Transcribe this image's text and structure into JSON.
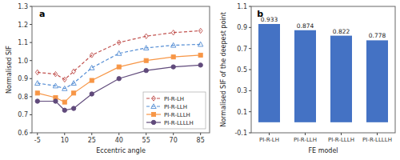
{
  "chart_data": [
    {
      "type": "line",
      "x": [
        -5,
        5,
        10,
        15,
        25,
        40,
        55,
        70,
        85
      ],
      "series": [
        {
          "name": "PI-R-LH",
          "color": "#c0504d",
          "line_style": "dashed",
          "marker": "diamond-open",
          "values": [
            0.935,
            0.925,
            0.895,
            0.94,
            1.03,
            1.1,
            1.135,
            1.155,
            1.165
          ]
        },
        {
          "name": "PI-R-LLH",
          "color": "#548dd4",
          "line_style": "dashed",
          "marker": "triangle-open",
          "values": [
            0.875,
            0.86,
            0.845,
            0.875,
            0.96,
            1.04,
            1.07,
            1.085,
            1.09
          ]
        },
        {
          "name": "PI-R-LLLH",
          "color": "#f79646",
          "line_style": "solid",
          "marker": "square",
          "values": [
            0.82,
            0.795,
            0.77,
            0.82,
            0.89,
            0.965,
            1.0,
            1.02,
            1.03
          ]
        },
        {
          "name": "PI-R-LLLLH",
          "color": "#604a7b",
          "line_style": "solid",
          "marker": "circle",
          "values": [
            0.775,
            0.775,
            0.725,
            0.735,
            0.815,
            0.9,
            0.945,
            0.965,
            0.975
          ]
        }
      ],
      "xlabel": "Eccentric angle",
      "ylabel": "Normalised SIF",
      "annotation": "a",
      "xlim": [
        -8,
        90
      ],
      "ylim": [
        0.6,
        1.3
      ],
      "xticks": [
        -5,
        10,
        25,
        40,
        55,
        70,
        85
      ],
      "yticks": [
        0.6,
        0.7,
        0.8,
        0.9,
        {
          "value": 1.0,
          "label": "1.0"
        },
        1.1,
        1.2,
        1.3
      ],
      "legend": "lower right"
    },
    {
      "type": "bar",
      "categories": [
        "PI-R-LH",
        "PI-R-LLH",
        "PI-R-LLLH",
        "PI-R-LLLLH"
      ],
      "values": [
        0.933,
        0.874,
        0.822,
        0.778
      ],
      "color": "#4472c4",
      "data_labels": true,
      "xlabel": "FE model",
      "ylabel": "Normalised SIF of the deepest point",
      "annotation": "b",
      "ylim": [
        -0.1,
        1.1
      ],
      "yticks": [
        -0.1,
        0.1,
        0.3,
        0.5,
        0.7,
        0.9,
        1.1
      ]
    }
  ]
}
